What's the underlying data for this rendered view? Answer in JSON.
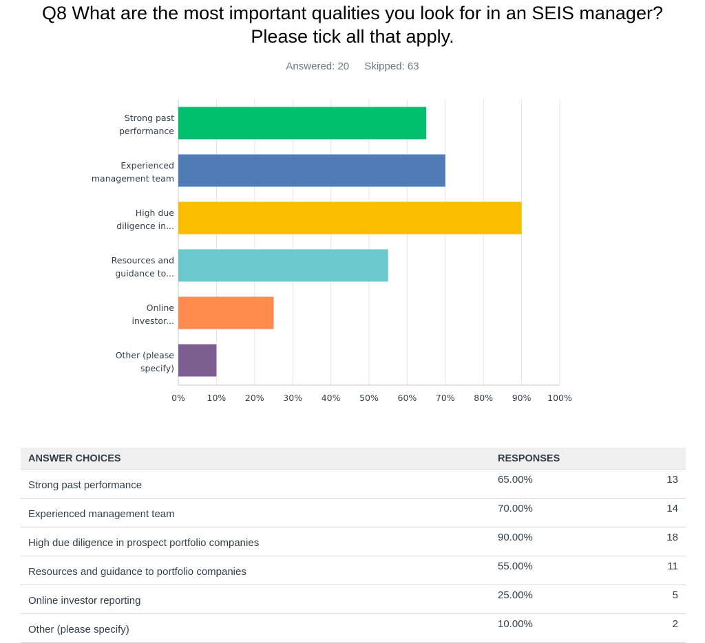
{
  "title": "Q8 What are the most important qualities you look for in an SEIS manager? Please tick all that apply.",
  "answered_label": "Answered: 20",
  "skipped_label": "Skipped: 63",
  "chart_data": {
    "type": "bar",
    "orientation": "horizontal",
    "categories": [
      [
        "Strong past",
        "performance"
      ],
      [
        "Experienced",
        "management team"
      ],
      [
        "High due",
        "diligence in..."
      ],
      [
        "Resources and",
        "guidance to..."
      ],
      [
        "Online",
        "investor..."
      ],
      [
        "Other (please",
        "specify)"
      ]
    ],
    "values": [
      65,
      70,
      90,
      55,
      25,
      10
    ],
    "colors": [
      "#00bf6f",
      "#507cb6",
      "#f9be00",
      "#6bc8cd",
      "#ff8b4f",
      "#7d5e90"
    ],
    "xlim": [
      0,
      100
    ],
    "ticks": [
      "0%",
      "10%",
      "20%",
      "30%",
      "40%",
      "50%",
      "60%",
      "70%",
      "80%",
      "90%",
      "100%"
    ],
    "grid": true,
    "legend": "none"
  },
  "table": {
    "header_choices": "ANSWER CHOICES",
    "header_responses": "RESPONSES",
    "rows": [
      {
        "choice": "Strong past performance",
        "percent": "65.00%",
        "count": "13"
      },
      {
        "choice": "Experienced management team",
        "percent": "70.00%",
        "count": "14"
      },
      {
        "choice": "High due diligence in prospect portfolio companies",
        "percent": "90.00%",
        "count": "18"
      },
      {
        "choice": "Resources and guidance to portfolio companies",
        "percent": "55.00%",
        "count": "11"
      },
      {
        "choice": "Online investor reporting",
        "percent": "25.00%",
        "count": "5"
      },
      {
        "choice": "Other (please specify)",
        "percent": "10.00%",
        "count": "2"
      }
    ]
  }
}
